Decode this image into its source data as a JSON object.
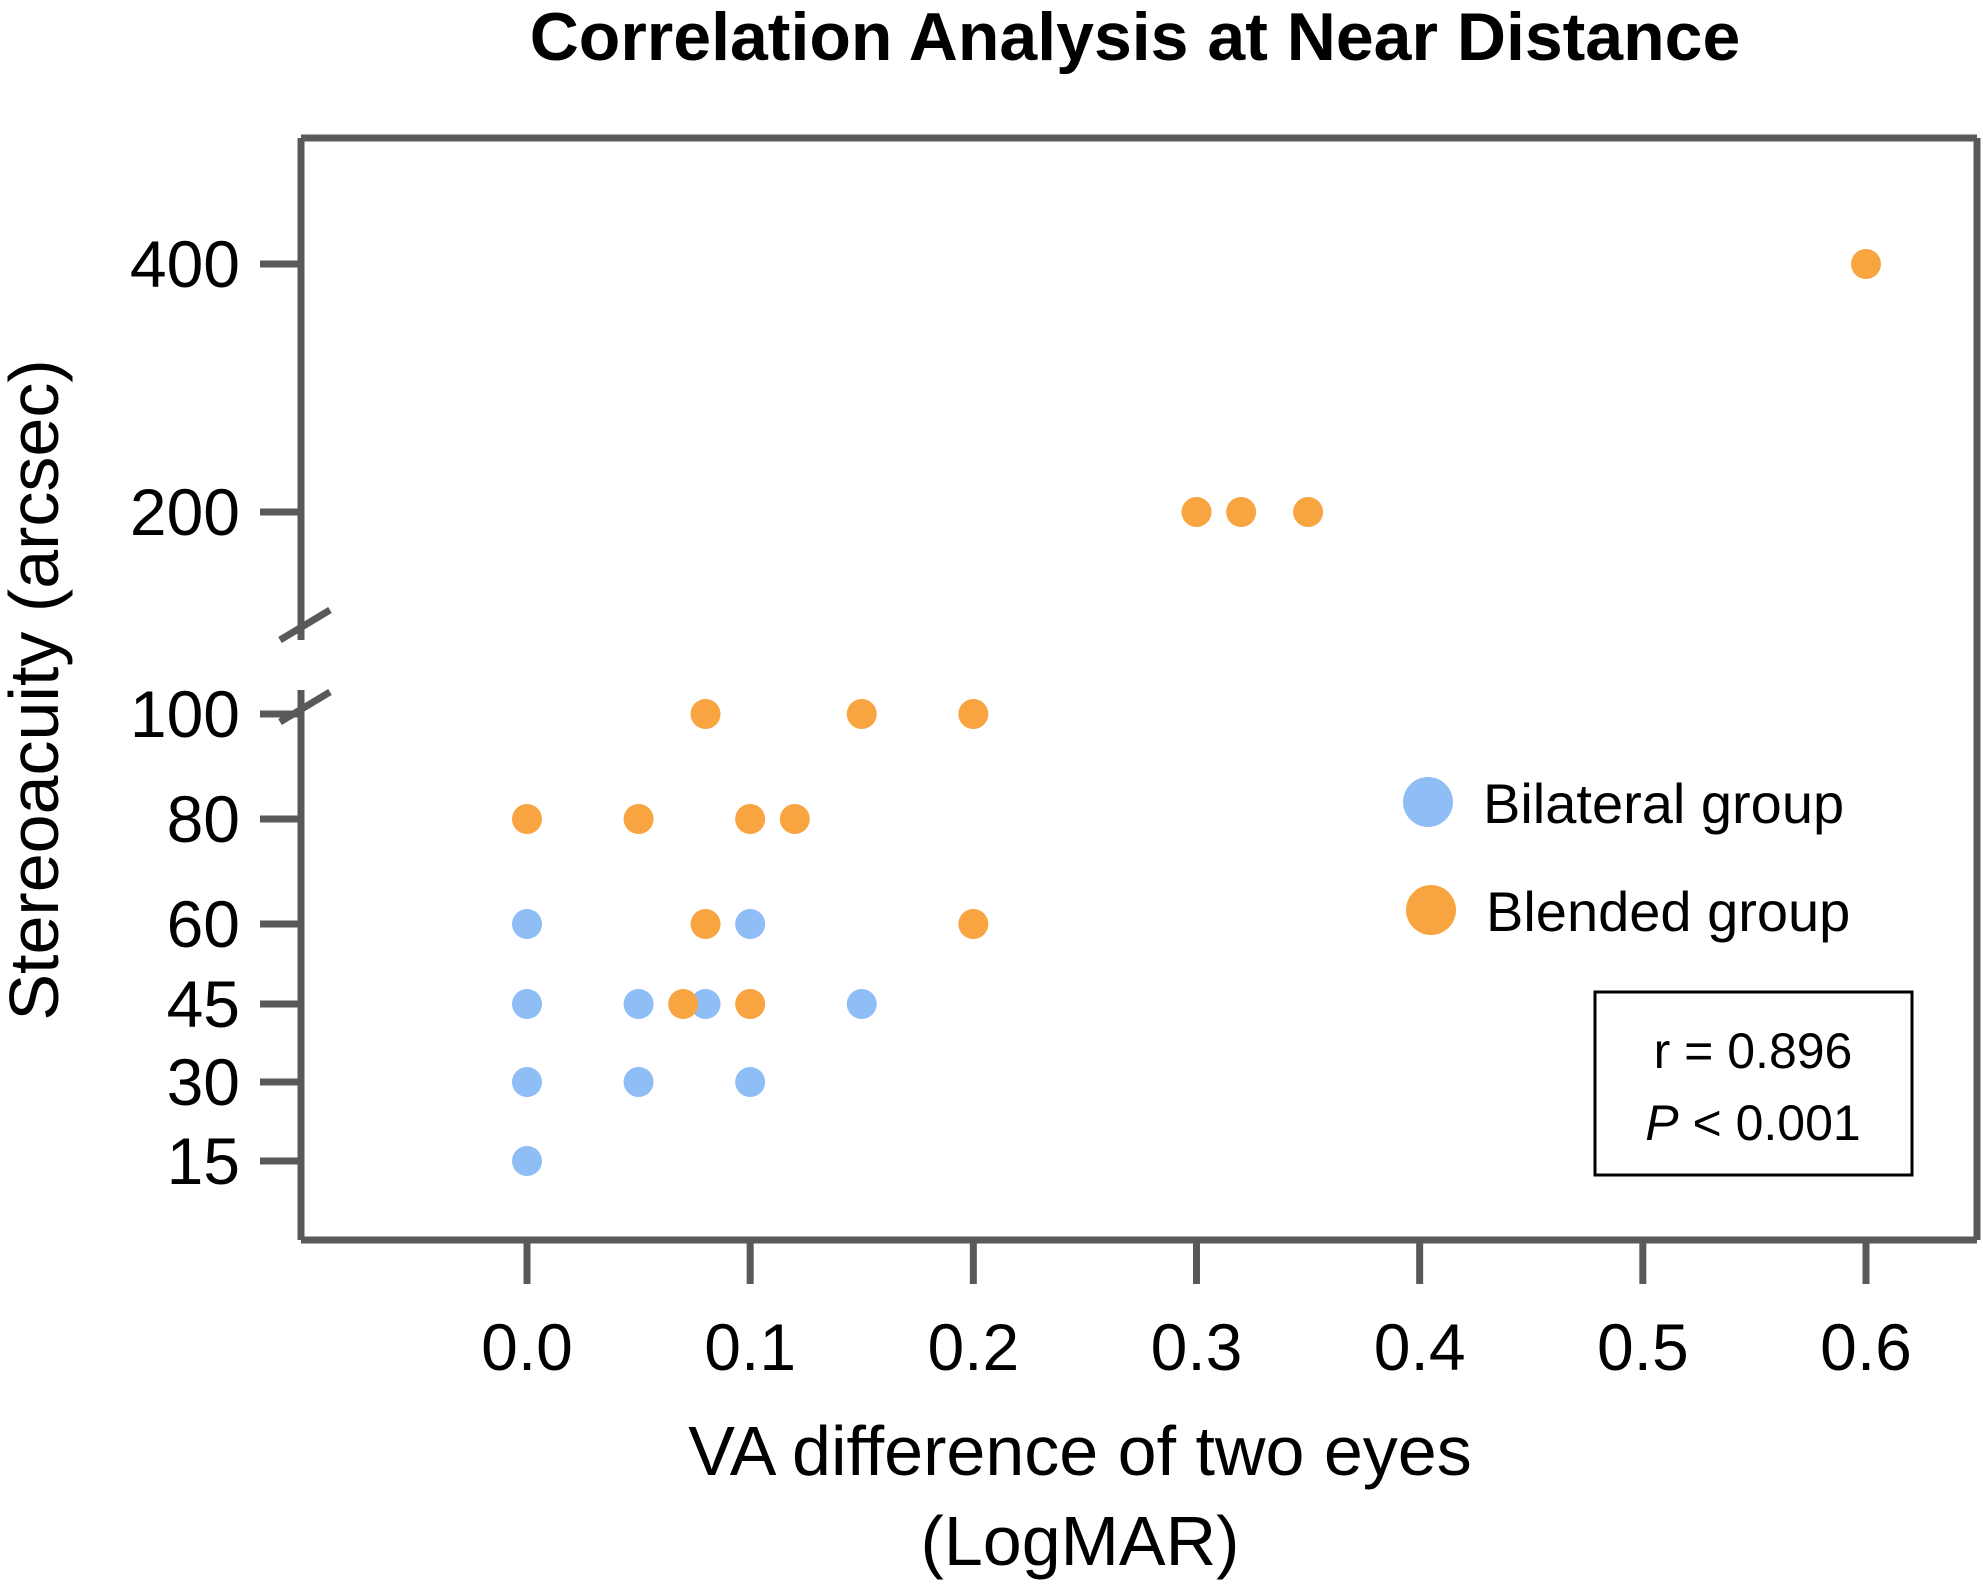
{
  "chart_data": {
    "type": "scatter",
    "title": "Correlation Analysis at Near Distance",
    "xlabel_line1": "VA difference of two eyes",
    "xlabel_line2": "(LogMAR)",
    "ylabel": "Stereoacuity (arcsec)",
    "x_ticks": [
      "0.0",
      "0.1",
      "0.2",
      "0.3",
      "0.4",
      "0.5",
      "0.6"
    ],
    "x_tick_values": [
      0.0,
      0.1,
      0.2,
      0.3,
      0.4,
      0.5,
      0.6
    ],
    "y_ticks": [
      "15",
      "30",
      "45",
      "60",
      "80",
      "100",
      "200",
      "400"
    ],
    "y_tick_values": [
      15,
      30,
      45,
      60,
      80,
      100,
      200,
      400
    ],
    "y_axis_break": "between 100 and 200",
    "xlim": [
      -0.1,
      0.65
    ],
    "grid": false,
    "legend_position": "right",
    "series": [
      {
        "name": "Bilateral group",
        "color": "#8ebef5",
        "points": [
          {
            "x": 0.0,
            "y": 15
          },
          {
            "x": 0.0,
            "y": 30
          },
          {
            "x": 0.0,
            "y": 45
          },
          {
            "x": 0.0,
            "y": 60
          },
          {
            "x": 0.05,
            "y": 30
          },
          {
            "x": 0.05,
            "y": 45
          },
          {
            "x": 0.08,
            "y": 45
          },
          {
            "x": 0.1,
            "y": 30
          },
          {
            "x": 0.1,
            "y": 60
          },
          {
            "x": 0.15,
            "y": 45
          }
        ]
      },
      {
        "name": "Blended group",
        "color": "#f8a440",
        "points": [
          {
            "x": 0.0,
            "y": 80
          },
          {
            "x": 0.05,
            "y": 80
          },
          {
            "x": 0.07,
            "y": 45
          },
          {
            "x": 0.08,
            "y": 60
          },
          {
            "x": 0.08,
            "y": 100
          },
          {
            "x": 0.1,
            "y": 45
          },
          {
            "x": 0.1,
            "y": 80
          },
          {
            "x": 0.12,
            "y": 80
          },
          {
            "x": 0.15,
            "y": 100
          },
          {
            "x": 0.2,
            "y": 60
          },
          {
            "x": 0.2,
            "y": 100
          },
          {
            "x": 0.3,
            "y": 200
          },
          {
            "x": 0.32,
            "y": 200
          },
          {
            "x": 0.35,
            "y": 200
          },
          {
            "x": 0.6,
            "y": 400
          }
        ]
      }
    ],
    "annotation": {
      "r_text": "r = 0.896",
      "p_symbol": "P",
      "p_text": " < 0.001"
    }
  }
}
